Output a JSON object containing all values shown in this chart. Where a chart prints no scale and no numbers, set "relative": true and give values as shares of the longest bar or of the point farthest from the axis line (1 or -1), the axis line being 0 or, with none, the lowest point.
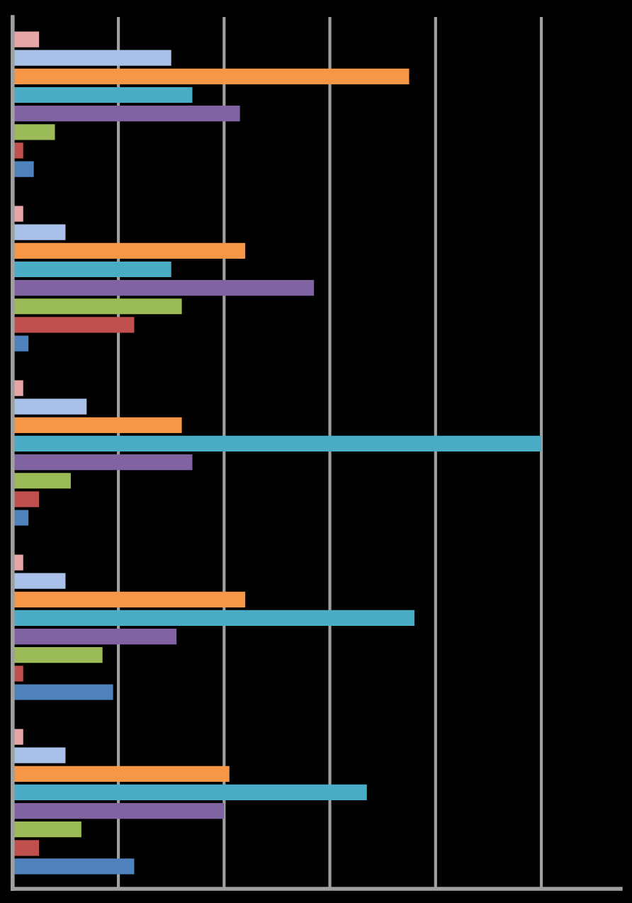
{
  "chart_data": {
    "type": "bar",
    "orientation": "horizontal",
    "relative": true,
    "grid": "x",
    "categories": [
      null,
      null,
      null,
      null,
      null
    ],
    "series": [
      {
        "color": "#e6a6a6",
        "values": [
          0.05,
          0.02,
          0.02,
          0.02,
          0.02
        ]
      },
      {
        "color": "#a9c0e8",
        "values": [
          0.3,
          0.1,
          0.14,
          0.1,
          0.1
        ]
      },
      {
        "color": "#f79646",
        "values": [
          0.75,
          0.44,
          0.32,
          0.44,
          0.41
        ]
      },
      {
        "color": "#4bacc6",
        "values": [
          0.34,
          0.3,
          1.0,
          0.76,
          0.67
        ]
      },
      {
        "color": "#8064a2",
        "values": [
          0.43,
          0.57,
          0.34,
          0.31,
          0.4
        ]
      },
      {
        "color": "#9bbb59",
        "values": [
          0.08,
          0.32,
          0.11,
          0.17,
          0.13
        ]
      },
      {
        "color": "#c0504d",
        "values": [
          0.02,
          0.23,
          0.05,
          0.02,
          0.05
        ]
      },
      {
        "color": "#4f81bd",
        "values": [
          0.04,
          0.03,
          0.03,
          0.19,
          0.23
        ]
      }
    ]
  }
}
